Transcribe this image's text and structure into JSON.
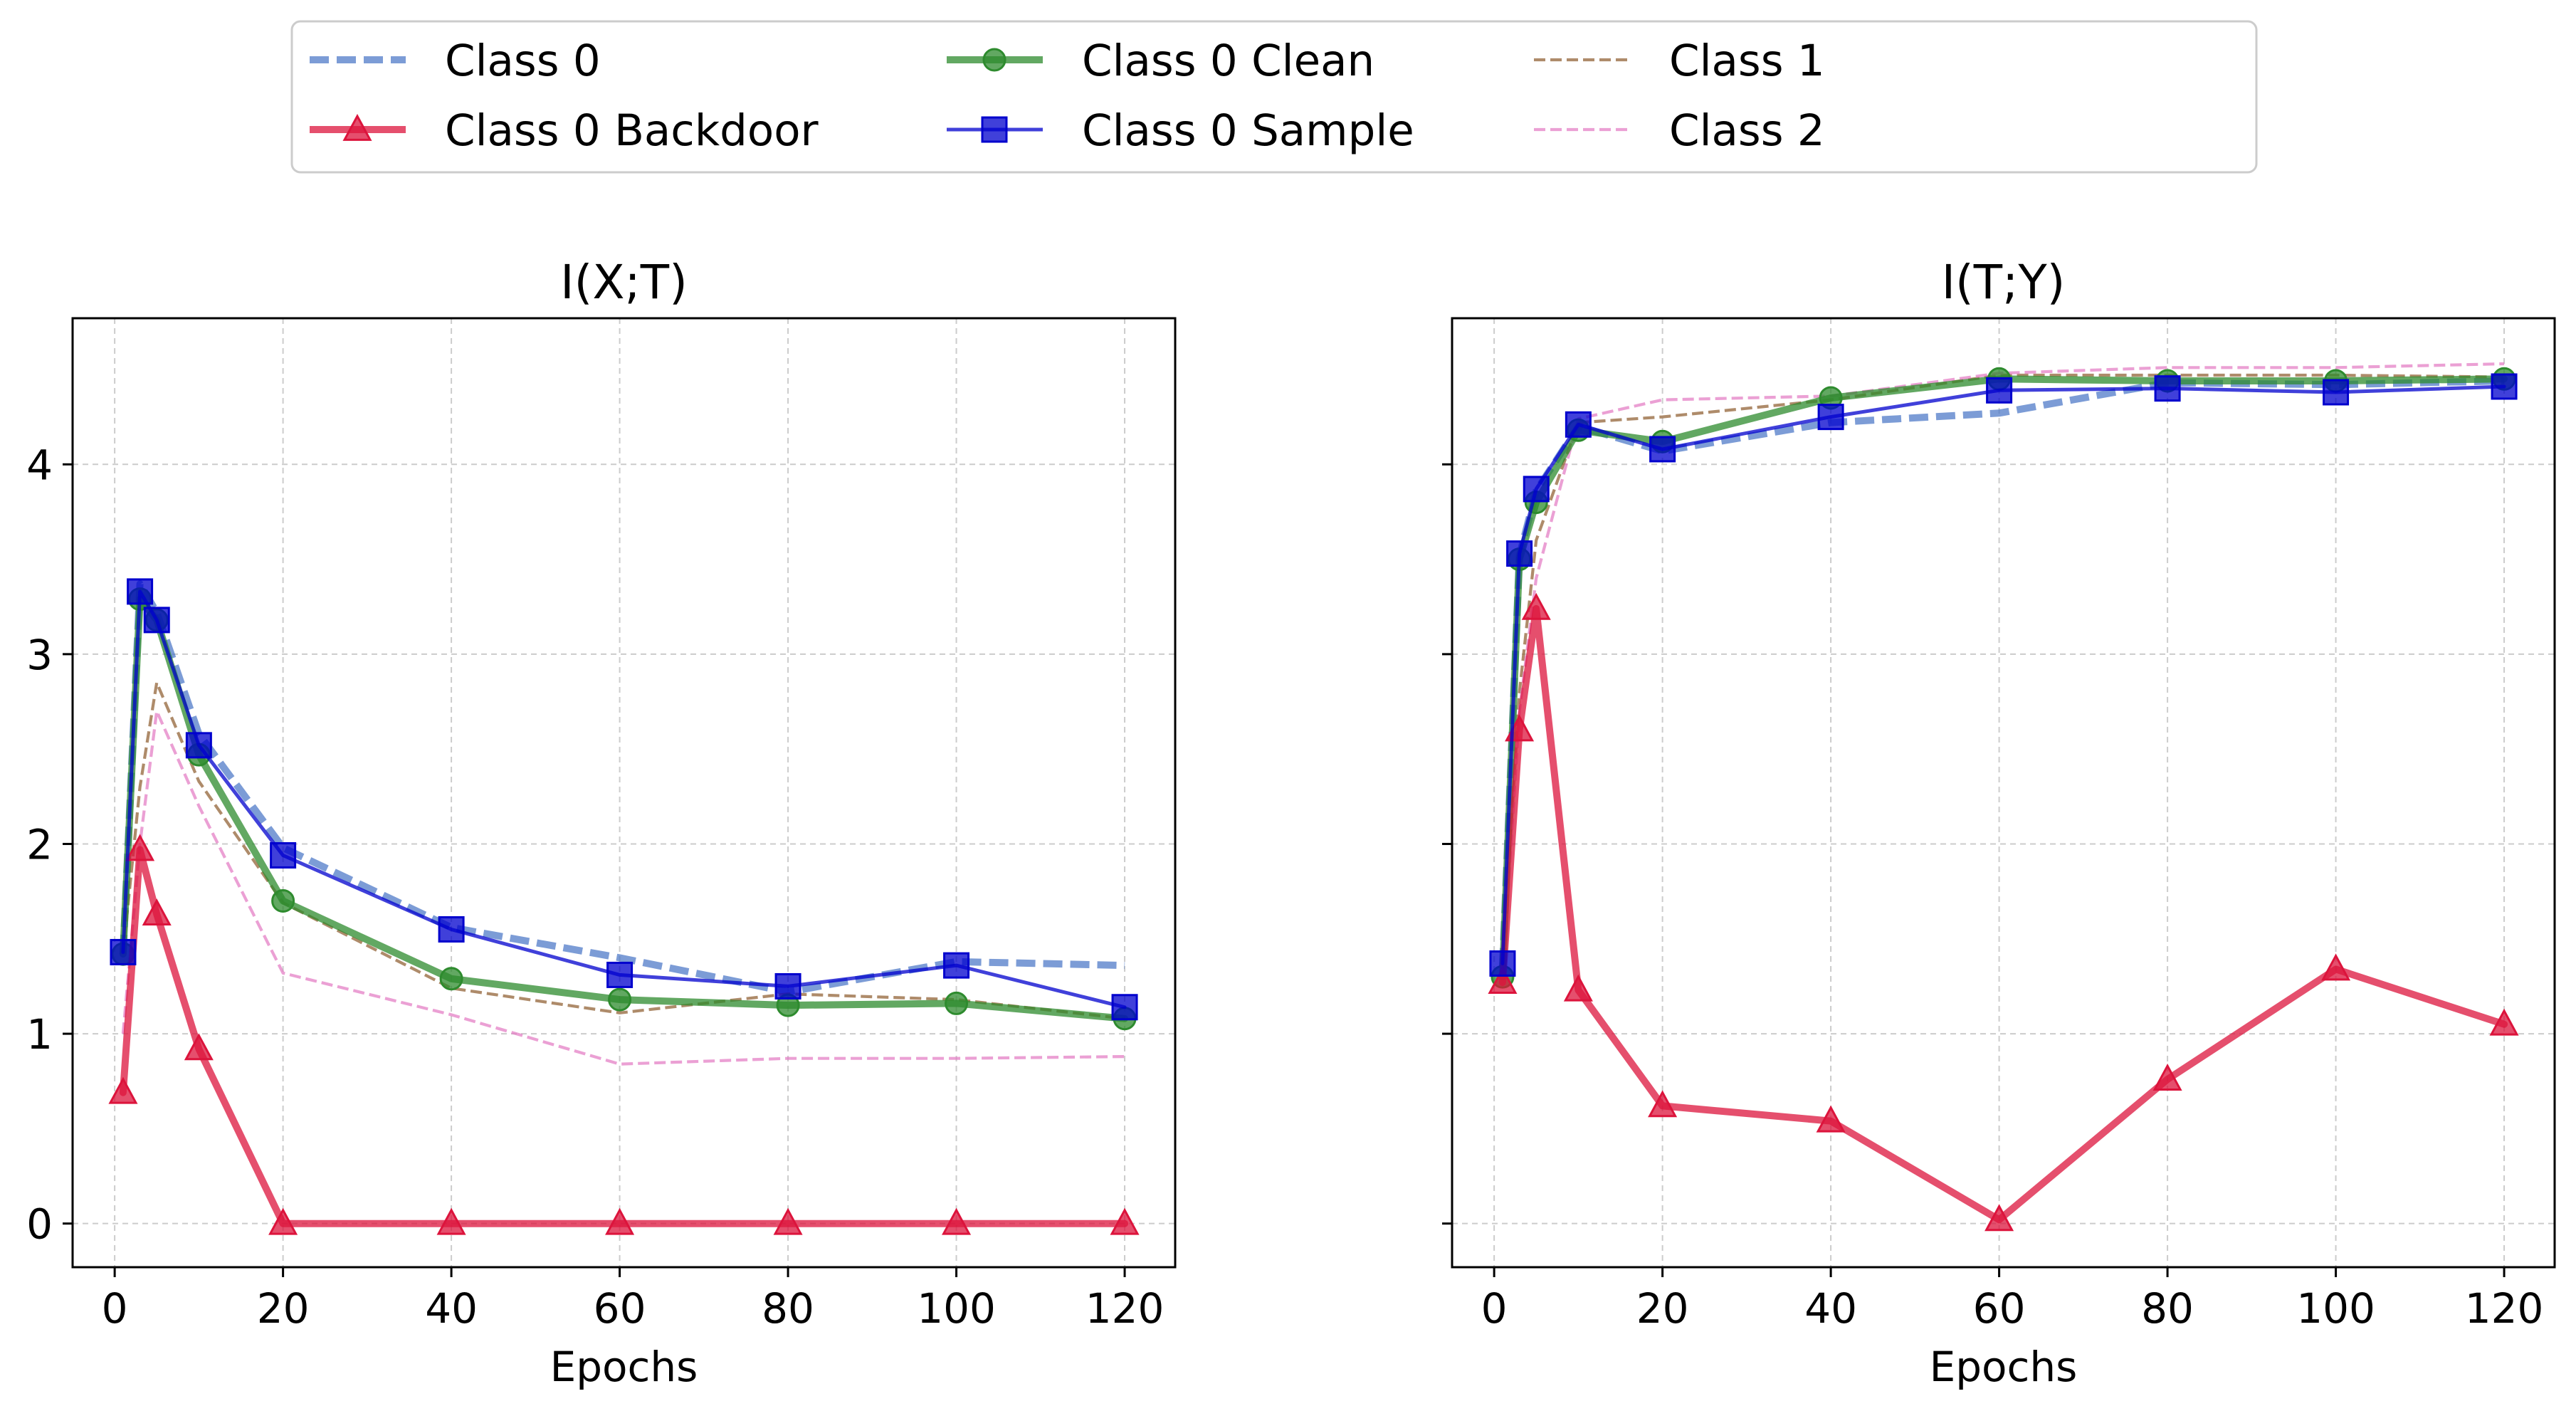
{
  "chart_data": {
    "type": "line",
    "legend": {
      "placement": "top-center",
      "columns": 4,
      "entries": [
        {
          "series": "Class 0"
        },
        {
          "series": "Class 0 Backdoor"
        },
        {
          "series": "Class 0 Clean"
        },
        {
          "series": "Class 0 Sample"
        },
        {
          "series": "Class 1"
        },
        {
          "series": "Class 2"
        }
      ]
    },
    "series_styles": {
      "Class 0": {
        "color": "#4472c4",
        "dash": "dashed",
        "marker": "none",
        "weight": "thick"
      },
      "Class 0 Backdoor": {
        "color": "#dc143c",
        "dash": "solid",
        "marker": "triangle",
        "weight": "thick"
      },
      "Class 0 Clean": {
        "color": "#2e8b2e",
        "dash": "solid",
        "marker": "circle",
        "weight": "thick"
      },
      "Class 0 Sample": {
        "color": "#0000cd",
        "dash": "solid",
        "marker": "square",
        "weight": "medium"
      },
      "Class 1": {
        "color": "#8b5a2b",
        "dash": "dashed",
        "marker": "none",
        "weight": "thin"
      },
      "Class 2": {
        "color": "#e377c2",
        "dash": "dashed",
        "marker": "none",
        "weight": "thin"
      }
    },
    "panels": [
      {
        "title": "I(X;T)",
        "xlabel": "Epochs",
        "ylabel": "",
        "grid": true,
        "xlim": [
          -5,
          126
        ],
        "ylim": [
          -0.23,
          4.77
        ],
        "xticks": [
          0,
          20,
          40,
          60,
          80,
          100,
          120
        ],
        "yticks": [
          0,
          1,
          2,
          3,
          4
        ],
        "show_yticklabels": true,
        "series": [
          {
            "name": "Class 0",
            "x": [
              1,
              3,
              5,
              10,
              20,
              40,
              60,
              80,
              100,
              120
            ],
            "y": [
              1.42,
              3.37,
              3.22,
              2.58,
              1.98,
              1.56,
              1.4,
              1.22,
              1.38,
              1.36
            ]
          },
          {
            "name": "Class 1",
            "x": [
              1,
              3,
              5,
              10,
              20,
              40,
              60,
              80,
              100,
              120
            ],
            "y": [
              1.42,
              2.3,
              2.85,
              2.33,
              1.69,
              1.24,
              1.11,
              1.21,
              1.18,
              1.08
            ]
          },
          {
            "name": "Class 2",
            "x": [
              1,
              3,
              5,
              10,
              20,
              40,
              60,
              80,
              100,
              120
            ],
            "y": [
              1.0,
              2.0,
              2.7,
              2.2,
              1.32,
              1.1,
              0.84,
              0.87,
              0.87,
              0.88
            ]
          },
          {
            "name": "Class 0 Clean",
            "x": [
              1,
              3,
              5,
              10,
              20,
              40,
              60,
              80,
              100,
              120
            ],
            "y": [
              1.42,
              3.29,
              3.18,
              2.47,
              1.7,
              1.29,
              1.18,
              1.15,
              1.16,
              1.08
            ]
          },
          {
            "name": "Class 0 Sample",
            "x": [
              1,
              3,
              5,
              10,
              20,
              40,
              60,
              80,
              100,
              120
            ],
            "y": [
              1.43,
              3.33,
              3.18,
              2.52,
              1.94,
              1.55,
              1.31,
              1.25,
              1.36,
              1.14
            ]
          },
          {
            "name": "Class 0 Backdoor",
            "x": [
              1,
              3,
              5,
              10,
              20,
              40,
              60,
              80,
              100,
              120
            ],
            "y": [
              0.69,
              1.97,
              1.63,
              0.92,
              0.0,
              0.0,
              0.0,
              0.0,
              0.0,
              0.0
            ]
          }
        ]
      },
      {
        "title": "I(T;Y)",
        "xlabel": "Epochs",
        "ylabel": "",
        "grid": true,
        "xlim": [
          -5,
          126
        ],
        "ylim": [
          -0.23,
          4.77
        ],
        "xticks": [
          0,
          20,
          40,
          60,
          80,
          100,
          120
        ],
        "yticks": [
          0,
          1,
          2,
          3,
          4
        ],
        "show_yticklabels": false,
        "series": [
          {
            "name": "Class 0",
            "x": [
              1,
              3,
              5,
              10,
              20,
              40,
              60,
              80,
              100,
              120
            ],
            "y": [
              1.35,
              3.52,
              3.86,
              4.2,
              4.07,
              4.22,
              4.27,
              4.43,
              4.42,
              4.44
            ]
          },
          {
            "name": "Class 1",
            "x": [
              1,
              3,
              5,
              10,
              20,
              40,
              60,
              80,
              100,
              120
            ],
            "y": [
              1.33,
              2.8,
              3.6,
              4.22,
              4.25,
              4.34,
              4.47,
              4.47,
              4.47,
              4.46
            ]
          },
          {
            "name": "Class 2",
            "x": [
              1,
              3,
              5,
              10,
              20,
              40,
              60,
              80,
              100,
              120
            ],
            "y": [
              1.3,
              2.7,
              3.4,
              4.24,
              4.34,
              4.36,
              4.48,
              4.51,
              4.51,
              4.53
            ]
          },
          {
            "name": "Class 0 Clean",
            "x": [
              1,
              3,
              5,
              10,
              20,
              40,
              60,
              80,
              100,
              120
            ],
            "y": [
              1.3,
              3.5,
              3.8,
              4.18,
              4.12,
              4.35,
              4.45,
              4.44,
              4.44,
              4.45
            ]
          },
          {
            "name": "Class 0 Sample",
            "x": [
              1,
              3,
              5,
              10,
              20,
              40,
              60,
              80,
              100,
              120
            ],
            "y": [
              1.37,
              3.53,
              3.87,
              4.21,
              4.08,
              4.25,
              4.39,
              4.4,
              4.38,
              4.41
            ]
          },
          {
            "name": "Class 0 Backdoor",
            "x": [
              1,
              3,
              5,
              10,
              20,
              40,
              60,
              80,
              100,
              120
            ],
            "y": [
              1.27,
              2.6,
              3.24,
              1.23,
              0.62,
              0.54,
              0.02,
              0.76,
              1.34,
              1.05
            ]
          }
        ]
      }
    ]
  }
}
